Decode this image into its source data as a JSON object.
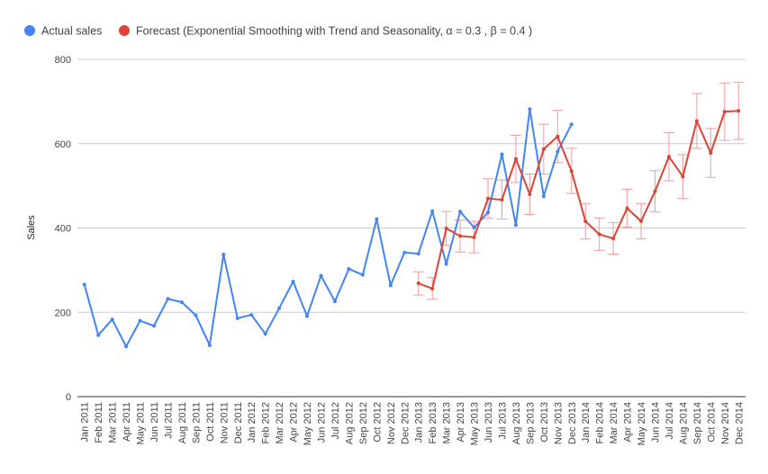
{
  "chart_data": {
    "type": "line",
    "title": "",
    "xlabel": "",
    "ylabel": "Sales",
    "ylim": [
      0,
      800
    ],
    "yticks": [
      0,
      200,
      400,
      600,
      800
    ],
    "grid": true,
    "legend_position": "top-left",
    "categories": [
      "Jan 2011",
      "Feb 2011",
      "Mar 2011",
      "Apr 2011",
      "May 2011",
      "Jun 2011",
      "Jul 2011",
      "Aug 2011",
      "Sep 2011",
      "Oct 2011",
      "Nov 2011",
      "Dec 2011",
      "Jan 2012",
      "Feb 2012",
      "Mar 2012",
      "Apr 2012",
      "May 2012",
      "Jun 2012",
      "Jul 2012",
      "Aug 2012",
      "Sep 2012",
      "Oct 2012",
      "Nov 2012",
      "Dec 2012",
      "Jan 2013",
      "Feb 2013",
      "Mar 2013",
      "Apr 2013",
      "May 2013",
      "Jun 2013",
      "Jul 2013",
      "Aug 2013",
      "Sep 2013",
      "Oct 2013",
      "Nov 2013",
      "Dec 2013",
      "Jan 2014",
      "Feb 2014",
      "Mar 2014",
      "Apr 2014",
      "May 2014",
      "Jun 2014",
      "Jul 2014",
      "Aug 2014",
      "Sep 2014",
      "Oct 2014",
      "Nov 2014",
      "Dec 2014"
    ],
    "series": [
      {
        "name": "Actual sales",
        "color": "#4285f4",
        "values": [
          266,
          146,
          183,
          119,
          180,
          168,
          232,
          224,
          193,
          122,
          337,
          186,
          194,
          149,
          210,
          273,
          191,
          287,
          226,
          303,
          289,
          421,
          264,
          342,
          339,
          440,
          315,
          439,
          401,
          437,
          575,
          407,
          682,
          475,
          581,
          646,
          null,
          null,
          null,
          null,
          null,
          null,
          null,
          null,
          null,
          null,
          null,
          null
        ]
      },
      {
        "name": "Forecast (Exponential Smoothing with Trend and Seasonality, α = 0.3 , β = 0.4  )",
        "color": "#db4437",
        "values": [
          null,
          null,
          null,
          null,
          null,
          null,
          null,
          null,
          null,
          null,
          null,
          null,
          null,
          null,
          null,
          null,
          null,
          null,
          null,
          null,
          null,
          null,
          null,
          null,
          269,
          256,
          399,
          381,
          378,
          470,
          467,
          564,
          480,
          587,
          617,
          535,
          416,
          385,
          375,
          447,
          416,
          487,
          569,
          522,
          654,
          578,
          676,
          678
        ],
        "error_low": [
          null,
          null,
          null,
          null,
          null,
          null,
          null,
          null,
          null,
          null,
          null,
          null,
          null,
          null,
          null,
          null,
          null,
          null,
          null,
          null,
          null,
          null,
          null,
          null,
          241,
          231,
          359,
          343,
          341,
          423,
          421,
          508,
          432,
          528,
          555,
          482,
          374,
          347,
          338,
          402,
          374,
          438,
          512,
          470,
          589,
          520,
          608,
          610
        ],
        "error_high": [
          null,
          null,
          null,
          null,
          null,
          null,
          null,
          null,
          null,
          null,
          null,
          null,
          null,
          null,
          null,
          null,
          null,
          null,
          null,
          null,
          null,
          null,
          null,
          null,
          296,
          282,
          439,
          419,
          416,
          517,
          514,
          620,
          528,
          646,
          679,
          589,
          458,
          424,
          413,
          492,
          458,
          536,
          626,
          574,
          719,
          636,
          744,
          746
        ],
        "error_color": "#ef9a9a"
      }
    ]
  }
}
